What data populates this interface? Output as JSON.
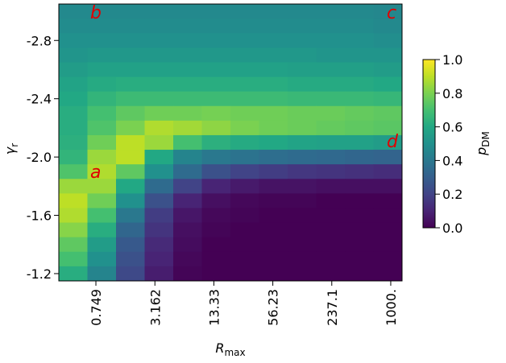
{
  "chart_data": {
    "type": "heatmap",
    "cmap": "viridis",
    "x_label": {
      "main": "R",
      "sub": "max"
    },
    "y_label": {
      "main": "γ",
      "sub": "r"
    },
    "colorbar_label": {
      "main": "p",
      "sub": "DM"
    },
    "annotations": [
      "a",
      "b",
      "c",
      "d"
    ],
    "xscale": "log",
    "xlim": [
      0.303,
      1318
    ],
    "xticks": [
      {
        "value": 0.749,
        "label": "0.749"
      },
      {
        "value": 3.162,
        "label": "3.162"
      },
      {
        "value": 13.33,
        "label": "13.33"
      },
      {
        "value": 56.23,
        "label": "56.23"
      },
      {
        "value": 237.1,
        "label": "237.1"
      },
      {
        "value": 1000,
        "label": "1000."
      }
    ],
    "ylim": [
      -3.05,
      -1.15
    ],
    "yticks": [
      -2.8,
      -2.4,
      -2.0,
      -1.6,
      -1.2
    ],
    "yticks_labels": [
      "-2.8",
      "-2.4",
      "-2.0",
      "-1.6",
      "-1.2"
    ],
    "clim": [
      0,
      1
    ],
    "cticks": [
      {
        "value": 0,
        "label": "0.0"
      },
      {
        "value": 0.2,
        "label": "0.2"
      },
      {
        "value": 0.4,
        "label": "0.4"
      },
      {
        "value": 0.6,
        "label": "0.6"
      },
      {
        "value": 0.8,
        "label": "0.8"
      },
      {
        "value": 1,
        "label": "1.0"
      }
    ],
    "z": [
      [
        0.47,
        0.47,
        0.47,
        0.47,
        0.47,
        0.47,
        0.47,
        0.47,
        0.47,
        0.47,
        0.47,
        0.46
      ],
      [
        0.48,
        0.48,
        0.48,
        0.48,
        0.48,
        0.48,
        0.48,
        0.48,
        0.48,
        0.48,
        0.48,
        0.47
      ],
      [
        0.5,
        0.5,
        0.5,
        0.5,
        0.5,
        0.5,
        0.5,
        0.5,
        0.5,
        0.5,
        0.5,
        0.49
      ],
      [
        0.52,
        0.53,
        0.53,
        0.53,
        0.53,
        0.53,
        0.53,
        0.53,
        0.53,
        0.52,
        0.52,
        0.52
      ],
      [
        0.55,
        0.57,
        0.57,
        0.57,
        0.57,
        0.57,
        0.57,
        0.57,
        0.56,
        0.56,
        0.56,
        0.55
      ],
      [
        0.58,
        0.61,
        0.62,
        0.62,
        0.62,
        0.62,
        0.62,
        0.62,
        0.61,
        0.61,
        0.61,
        0.6
      ],
      [
        0.6,
        0.65,
        0.68,
        0.68,
        0.68,
        0.68,
        0.68,
        0.68,
        0.67,
        0.67,
        0.67,
        0.66
      ],
      [
        0.62,
        0.7,
        0.75,
        0.78,
        0.78,
        0.79,
        0.78,
        0.78,
        0.77,
        0.77,
        0.76,
        0.75
      ],
      [
        0.62,
        0.72,
        0.8,
        0.88,
        0.86,
        0.83,
        0.8,
        0.78,
        0.77,
        0.76,
        0.75,
        0.74
      ],
      [
        0.63,
        0.78,
        0.9,
        0.85,
        0.7,
        0.63,
        0.61,
        0.6,
        0.58,
        0.57,
        0.57,
        0.55
      ],
      [
        0.65,
        0.85,
        0.9,
        0.6,
        0.45,
        0.4,
        0.38,
        0.36,
        0.35,
        0.34,
        0.33,
        0.32
      ],
      [
        0.72,
        0.88,
        0.75,
        0.5,
        0.35,
        0.25,
        0.2,
        0.18,
        0.16,
        0.15,
        0.14,
        0.13
      ],
      [
        0.85,
        0.85,
        0.6,
        0.35,
        0.2,
        0.1,
        0.07,
        0.05,
        0.05,
        0.04,
        0.04,
        0.04
      ],
      [
        0.9,
        0.78,
        0.5,
        0.25,
        0.1,
        0.04,
        0.02,
        0.01,
        0.01,
        0,
        0,
        0
      ],
      [
        0.88,
        0.7,
        0.4,
        0.18,
        0.06,
        0.02,
        0.01,
        0,
        0,
        0,
        0,
        0
      ],
      [
        0.82,
        0.62,
        0.33,
        0.15,
        0.04,
        0.01,
        0,
        0,
        0,
        0,
        0,
        0
      ],
      [
        0.75,
        0.55,
        0.28,
        0.12,
        0.03,
        0,
        0,
        0,
        0,
        0,
        0,
        0
      ],
      [
        0.7,
        0.5,
        0.25,
        0.1,
        0.02,
        0,
        0,
        0,
        0,
        0,
        0,
        0
      ],
      [
        0.62,
        0.45,
        0.22,
        0.08,
        0.01,
        0,
        0,
        0,
        0,
        0,
        0,
        0
      ]
    ]
  }
}
